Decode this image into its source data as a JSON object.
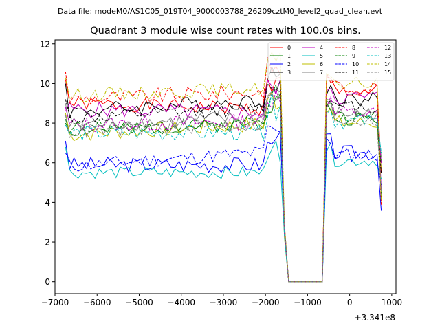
{
  "figure": {
    "suptitle": "Data file: modeM0/AS1C05_019T04_9000003788_26209cztM0_level2_quad_clean.evt"
  },
  "chart_data": {
    "type": "line",
    "title": "Quadrant 3 module wise count rates with 100.0s bins.",
    "xlabel": "",
    "ylabel": "",
    "x_offset_label": "+3.341e8",
    "xlim": [
      -7000,
      1100
    ],
    "ylim": [
      -0.6,
      12.2
    ],
    "x_ticks": [
      -7000,
      -6000,
      -5000,
      -4000,
      -3000,
      -2000,
      -1000,
      0,
      1000
    ],
    "x_tick_labels": [
      "−7000",
      "−6000",
      "−5000",
      "−4000",
      "−3000",
      "−2000",
      "−1000",
      "0",
      "1000"
    ],
    "y_ticks": [
      0,
      2,
      4,
      6,
      8,
      10,
      12
    ],
    "y_tick_labels": [
      "0",
      "2",
      "4",
      "6",
      "8",
      "10",
      "12"
    ],
    "legend_position": "top-right",
    "segments": [
      {
        "x_start": -6750,
        "x_end": -1650,
        "step": 100
      },
      {
        "x_start": -1550,
        "x_end": -750,
        "step": 100
      },
      {
        "x_start": -650,
        "x_end": 750,
        "step": 100
      }
    ],
    "series": [
      {
        "name": "0",
        "color": "#ff0000",
        "dash": "solid",
        "level": 9.0,
        "start": 10.2,
        "trend": -0.15,
        "noise": 0.35,
        "seed": 1
      },
      {
        "name": "1",
        "color": "#008000",
        "dash": "solid",
        "level": 7.6,
        "start": 8.2,
        "trend": 0.2,
        "noise": 0.35,
        "seed": 2
      },
      {
        "name": "2",
        "color": "#0000ff",
        "dash": "solid",
        "level": 5.9,
        "start": 7.1,
        "trend": 0.0,
        "noise": 0.4,
        "seed": 3
      },
      {
        "name": "3",
        "color": "#000000",
        "dash": "solid",
        "level": 8.6,
        "start": 10.0,
        "trend": 0.3,
        "noise": 0.4,
        "seed": 4
      },
      {
        "name": "4",
        "color": "#bf00bf",
        "dash": "solid",
        "level": 8.7,
        "start": 8.6,
        "trend": -0.1,
        "noise": 0.4,
        "seed": 5
      },
      {
        "name": "5",
        "color": "#00bfbf",
        "dash": "solid",
        "level": 5.5,
        "start": 6.8,
        "trend": 0.0,
        "noise": 0.3,
        "seed": 6
      },
      {
        "name": "6",
        "color": "#bfbf00",
        "dash": "solid",
        "level": 7.4,
        "start": 8.5,
        "trend": 0.3,
        "noise": 0.4,
        "seed": 7
      },
      {
        "name": "7",
        "color": "#808080",
        "dash": "solid",
        "level": 7.9,
        "start": 9.0,
        "trend": 0.2,
        "noise": 0.4,
        "seed": 8
      },
      {
        "name": "8",
        "color": "#ff0000",
        "dash": "dashed",
        "level": 9.2,
        "start": 10.6,
        "trend": 0.2,
        "noise": 0.4,
        "seed": 9
      },
      {
        "name": "9",
        "color": "#008000",
        "dash": "dashed",
        "level": 7.8,
        "start": 8.0,
        "trend": 0.1,
        "noise": 0.35,
        "seed": 10
      },
      {
        "name": "10",
        "color": "#0000ff",
        "dash": "dashed",
        "level": 5.8,
        "start": 6.5,
        "trend": 0.4,
        "noise": 0.35,
        "seed": 11
      },
      {
        "name": "11",
        "color": "#000000",
        "dash": "dashed",
        "level": 8.2,
        "start": 9.2,
        "trend": 0.3,
        "noise": 0.35,
        "seed": 12
      },
      {
        "name": "12",
        "color": "#bf00bf",
        "dash": "dashed",
        "level": 7.9,
        "start": 8.8,
        "trend": 0.1,
        "noise": 0.4,
        "seed": 13
      },
      {
        "name": "13",
        "color": "#00bfbf",
        "dash": "dashed",
        "level": 7.5,
        "start": 7.9,
        "trend": 0.0,
        "noise": 0.4,
        "seed": 14
      },
      {
        "name": "14",
        "color": "#bfbf00",
        "dash": "dashed",
        "level": 9.4,
        "start": 10.3,
        "trend": 0.2,
        "noise": 0.35,
        "seed": 15
      },
      {
        "name": "15",
        "color": "#808080",
        "dash": "dashed",
        "level": 7.6,
        "start": 8.4,
        "trend": 0.2,
        "noise": 0.4,
        "seed": 16
      }
    ],
    "final_value_range": [
      3.5,
      6.5
    ],
    "gap_value": 0
  }
}
